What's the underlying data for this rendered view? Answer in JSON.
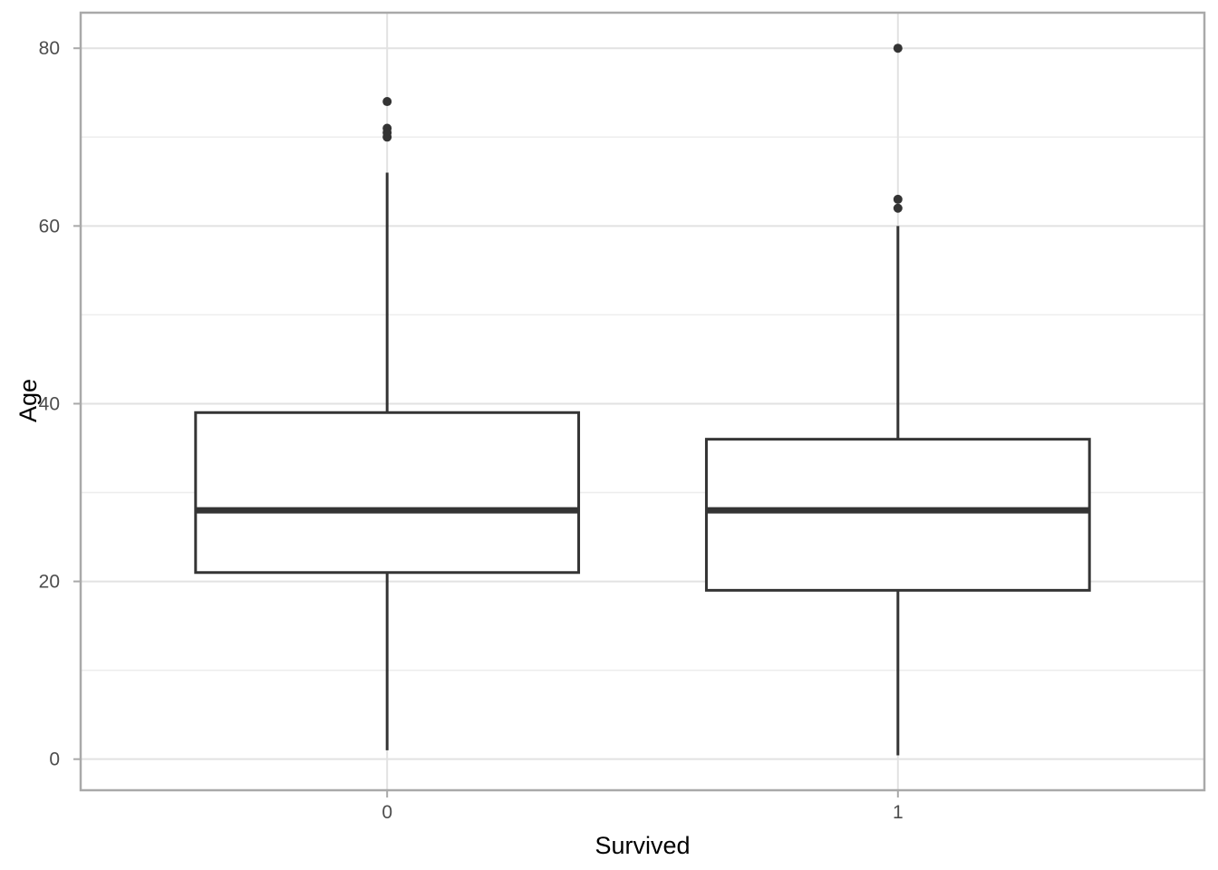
{
  "chart_data": {
    "type": "boxplot",
    "title": "",
    "xlabel": "Survived",
    "ylabel": "Age",
    "categories": [
      "0",
      "1"
    ],
    "y_ticks": [
      0,
      20,
      40,
      60,
      80
    ],
    "y_minor_ticks": [
      10,
      30,
      50,
      70
    ],
    "ylim": [
      -3.5,
      84
    ],
    "grid": "horizontal major+minor, vertical major at categories",
    "legend_position": "none",
    "series": [
      {
        "category": "0",
        "lower_whisker": 1,
        "q1": 21,
        "median": 28,
        "q3": 39,
        "upper_whisker": 66,
        "outliers": [
          70,
          70.5,
          71,
          74
        ]
      },
      {
        "category": "1",
        "lower_whisker": 0.42,
        "q1": 19,
        "median": 28,
        "q3": 36,
        "upper_whisker": 60,
        "outliers": [
          62,
          63,
          80
        ]
      }
    ],
    "colors": {
      "background": "#FFFFFF",
      "box_stroke": "#343434",
      "box_fill": "#FFFFFF",
      "grid_major": "#E2E2E2",
      "grid_minor": "#EDEDED",
      "panel_border": "#A9A9A9",
      "tick_mark": "#A9A9A9",
      "tick_label": "#4D4D4D",
      "axis_title": "#000000"
    }
  }
}
